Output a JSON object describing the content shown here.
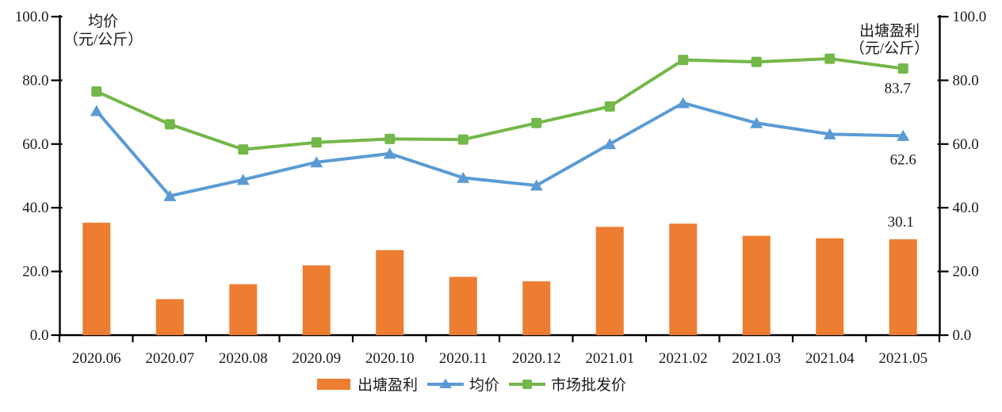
{
  "chart_data": {
    "type": "combo-bar-line",
    "categories": [
      "2020.06",
      "2020.07",
      "2020.08",
      "2020.09",
      "2020.10",
      "2020.11",
      "2020.12",
      "2021.01",
      "2021.02",
      "2021.03",
      "2021.04",
      "2021.05"
    ],
    "series": [
      {
        "key": "pond-profit",
        "name": "出塘盈利",
        "type": "bar",
        "axis": "right",
        "color": "#ED7D31",
        "marker": "rect",
        "values": [
          35.3,
          11.3,
          16.0,
          21.9,
          26.7,
          18.3,
          16.9,
          34.0,
          35.0,
          31.2,
          30.4,
          30.1
        ]
      },
      {
        "key": "avg-price",
        "name": "均价",
        "type": "line",
        "axis": "left",
        "color": "#5B9BD5",
        "marker": "triangle",
        "values": [
          70.4,
          43.7,
          48.8,
          54.3,
          57.0,
          49.4,
          47.0,
          60.0,
          72.9,
          66.6,
          63.1,
          62.6
        ]
      },
      {
        "key": "wholesale-price",
        "name": "市场批发价",
        "type": "line",
        "axis": "left",
        "color": "#74B74A",
        "marker": "square",
        "values": [
          76.5,
          66.2,
          58.3,
          60.5,
          61.6,
          61.4,
          66.6,
          71.8,
          86.4,
          85.8,
          86.8,
          83.7
        ]
      }
    ],
    "left_axis": {
      "title_line1": "均价",
      "title_line2": "（元/公斤）",
      "tick_labels": [
        "0.0",
        "20.0",
        "40.0",
        "60.0",
        "80.0",
        "100.0"
      ],
      "min": 0,
      "max": 100
    },
    "right_axis": {
      "title_line1": "出塘盈利",
      "title_line2": "（元/公斤）",
      "tick_labels": [
        "0.0",
        "20.0",
        "40.0",
        "60.0",
        "80.0",
        "100.0"
      ],
      "min": 0,
      "max": 100
    },
    "annotations": [
      {
        "series_index": 2,
        "point_index": 11,
        "label": "83.7"
      },
      {
        "series_index": 1,
        "point_index": 11,
        "label": "62.6"
      },
      {
        "series_index": 0,
        "point_index": 11,
        "label": "30.1"
      }
    ],
    "legend_position": "bottom",
    "grid": false,
    "axis_color": "#000000"
  }
}
